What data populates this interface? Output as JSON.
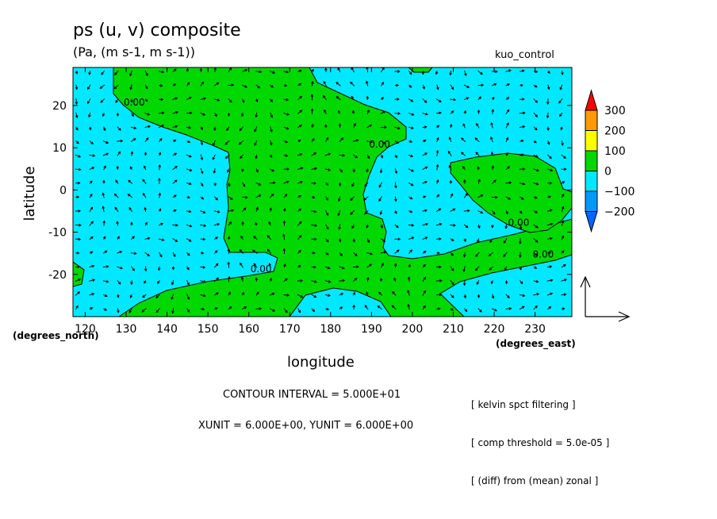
{
  "chart_data": {
    "type": "contour",
    "title": "ps (u, v) composite",
    "units_label": "(Pa, (m s-1, m s-1))",
    "run_name": "kuo_control",
    "xlabel": "longitude",
    "ylabel": "latitude",
    "x_unit_label": "(degrees_east)",
    "y_unit_label": "(degrees_north)",
    "xlim": [
      117,
      239
    ],
    "ylim": [
      -30,
      29
    ],
    "x_ticks": [
      120,
      130,
      140,
      150,
      160,
      170,
      180,
      190,
      200,
      210,
      220,
      230
    ],
    "y_ticks": [
      -20,
      -10,
      0,
      10,
      20
    ],
    "contour_labels": [
      {
        "text": "0.00",
        "x": 132,
        "y": 20
      },
      {
        "text": "0.00",
        "x": 192,
        "y": 10
      },
      {
        "text": "0.00",
        "x": 226,
        "y": -8.5
      },
      {
        "text": "0.00",
        "x": 232,
        "y": -16
      },
      {
        "text": "0.00",
        "x": 163,
        "y": -19.5
      }
    ],
    "colorbar": {
      "levels": [
        "300",
        "200",
        "100",
        "0",
        "−100",
        "−200"
      ],
      "colors": [
        "#ff0000",
        "#ff9900",
        "#ffff00",
        "#00d800",
        "#00e8ff",
        "#0099ff",
        "#0066ff"
      ]
    },
    "fill_colors": {
      "positive": "#00d800",
      "negative": "#00e8ff"
    },
    "vector_reference": {
      "xunit": 6.0,
      "yunit": 6.0
    }
  },
  "contour_interval_text": "CONTOUR INTERVAL = 5.000E+01",
  "unit_text": "XUNIT = 6.000E+00, YUNIT = 6.000E+00",
  "notes": [
    "[ kelvin spct filtering ]",
    "[ comp threshold = 5.0e-05 ]",
    "[ (diff) from (mean) zonal ]"
  ]
}
